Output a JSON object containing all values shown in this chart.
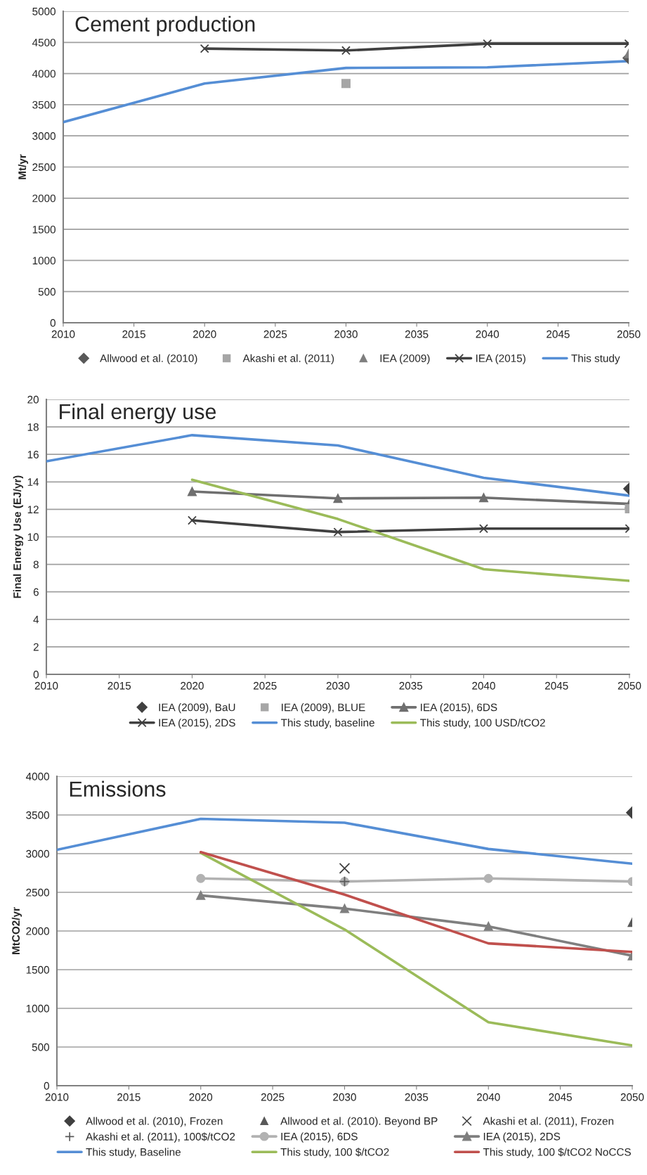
{
  "chart_data": [
    {
      "type": "line",
      "title": "Cement production",
      "ylabel": "Mt/yr",
      "xlim": [
        2010,
        2050
      ],
      "xticks": [
        2010,
        2015,
        2020,
        2025,
        2030,
        2035,
        2040,
        2045,
        2050
      ],
      "ylim": [
        0,
        5000
      ],
      "yticks": [
        0,
        500,
        1000,
        1500,
        2000,
        2500,
        3000,
        3500,
        4000,
        4500,
        5000
      ],
      "grid": "y",
      "legend": "bottom",
      "series": [
        {
          "name": "Allwood et al. (2010)",
          "type": "scatter",
          "marker": "diamond",
          "color": "#595959",
          "x": [
            2050
          ],
          "values": [
            4250
          ]
        },
        {
          "name": "Akashi et al. (2011)",
          "type": "scatter",
          "marker": "square",
          "color": "#a6a6a6",
          "x": [
            2030
          ],
          "values": [
            3840
          ]
        },
        {
          "name": "IEA (2009)",
          "type": "scatter",
          "marker": "triangle",
          "color": "#7f7f7f",
          "x": [
            2050
          ],
          "values": [
            4320
          ]
        },
        {
          "name": "IEA (2015)",
          "marker": "cross",
          "color": "#404040",
          "x": [
            2020,
            2030,
            2040,
            2050
          ],
          "values": [
            4400,
            4370,
            4480,
            4480
          ]
        },
        {
          "name": "This study",
          "marker": "none",
          "color": "#558ed5",
          "x": [
            2010,
            2020,
            2030,
            2040,
            2050
          ],
          "values": [
            3220,
            3840,
            4090,
            4100,
            4200
          ]
        }
      ]
    },
    {
      "type": "line",
      "title": "Final energy use",
      "ylabel": "Final Energy Use (EJ/yr)",
      "xlim": [
        2010,
        2050
      ],
      "xticks": [
        2010,
        2015,
        2020,
        2025,
        2030,
        2035,
        2040,
        2045,
        2050
      ],
      "ylim": [
        0,
        20
      ],
      "yticks": [
        0,
        2,
        4,
        6,
        8,
        10,
        12,
        14,
        16,
        18,
        20
      ],
      "grid": "y",
      "legend": "bottom",
      "series": [
        {
          "name": "IEA (2009), BaU",
          "type": "scatter",
          "marker": "diamond",
          "color": "#404040",
          "x": [
            2050
          ],
          "values": [
            13.5
          ]
        },
        {
          "name": "IEA (2009), BLUE",
          "type": "scatter",
          "marker": "square",
          "color": "#a6a6a6",
          "x": [
            2050
          ],
          "values": [
            12.05
          ]
        },
        {
          "name": "IEA (2015), 6DS",
          "marker": "triangle",
          "color": "#6f6f6f",
          "x": [
            2020,
            2030,
            2040,
            2050
          ],
          "values": [
            13.3,
            12.8,
            12.85,
            12.4
          ]
        },
        {
          "name": "IEA (2015), 2DS",
          "marker": "cross",
          "color": "#404040",
          "x": [
            2020,
            2030,
            2040,
            2050
          ],
          "values": [
            11.2,
            10.35,
            10.6,
            10.6
          ]
        },
        {
          "name": "This study, baseline",
          "marker": "none",
          "color": "#558ed5",
          "x": [
            2010,
            2020,
            2030,
            2040,
            2050
          ],
          "values": [
            15.5,
            17.4,
            16.65,
            14.3,
            13.0
          ]
        },
        {
          "name": "This study, 100 USD/tCO2",
          "marker": "none",
          "color": "#9bbb59",
          "x": [
            2020,
            2030,
            2040,
            2050
          ],
          "values": [
            14.15,
            11.3,
            7.65,
            6.8
          ]
        }
      ]
    },
    {
      "type": "line",
      "title": "Emissions",
      "ylabel": "MtCO2/yr",
      "xlim": [
        2010,
        2050
      ],
      "xticks": [
        2010,
        2015,
        2020,
        2025,
        2030,
        2035,
        2040,
        2045,
        2050
      ],
      "ylim": [
        0,
        4000
      ],
      "yticks": [
        0,
        500,
        1000,
        1500,
        2000,
        2500,
        3000,
        3500,
        4000
      ],
      "grid": "y",
      "legend": "bottom",
      "series": [
        {
          "name": "Allwood et al. (2010), Frozen",
          "type": "scatter",
          "marker": "diamond",
          "color": "#404040",
          "x": [
            2050
          ],
          "values": [
            3530
          ]
        },
        {
          "name": "Allwood et al. (2010). Beyond BP",
          "type": "scatter",
          "marker": "triangle",
          "color": "#595959",
          "x": [
            2050
          ],
          "values": [
            2110
          ]
        },
        {
          "name": "Akashi et al. (2011), Frozen",
          "type": "scatter",
          "marker": "cross",
          "color": "#404040",
          "x": [
            2030
          ],
          "values": [
            2810
          ]
        },
        {
          "name": "Akashi et al. (2011), 100$/tCO2",
          "type": "scatter",
          "marker": "plus",
          "color": "#595959",
          "x": [
            2030
          ],
          "values": [
            2640
          ]
        },
        {
          "name": "IEA (2015), 6DS",
          "marker": "circle",
          "color": "#b2b2b2",
          "x": [
            2020,
            2030,
            2040,
            2050
          ],
          "values": [
            2680,
            2640,
            2680,
            2640
          ]
        },
        {
          "name": "IEA (2015), 2DS",
          "marker": "triangle",
          "color": "#7f7f7f",
          "x": [
            2020,
            2030,
            2040,
            2050
          ],
          "values": [
            2460,
            2290,
            2060,
            1680
          ]
        },
        {
          "name": "This study, Baseline",
          "marker": "none",
          "color": "#558ed5",
          "x": [
            2010,
            2020,
            2030,
            2040,
            2050
          ],
          "values": [
            3050,
            3450,
            3400,
            3060,
            2870
          ]
        },
        {
          "name": "This study, 100 $/tCO2",
          "marker": "none",
          "color": "#9bbb59",
          "x": [
            2020,
            2030,
            2040,
            2050
          ],
          "values": [
            3010,
            2020,
            820,
            520
          ]
        },
        {
          "name": "This study, 100 $/tCO2 NoCCS",
          "marker": "none",
          "color": "#c0504d",
          "x": [
            2020,
            2030,
            2040,
            2050
          ],
          "values": [
            3020,
            2470,
            1840,
            1730
          ]
        }
      ]
    }
  ]
}
